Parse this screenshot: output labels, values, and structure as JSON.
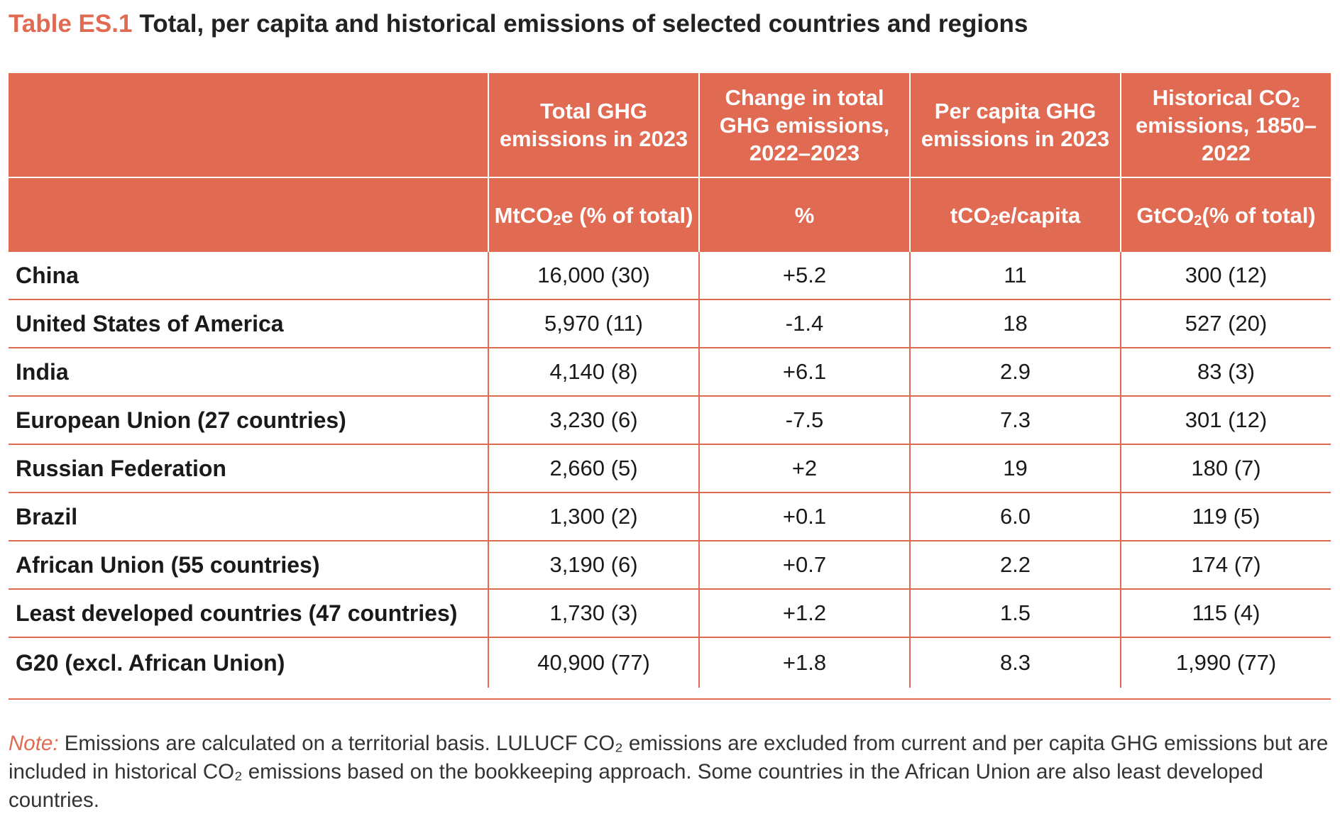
{
  "title": {
    "label": "Table ES.1",
    "text": "Total, per capita and historical emissions of selected countries and regions"
  },
  "table": {
    "headers": [
      {
        "key": "total",
        "pre": "Total GHG emissions in 2023",
        "sub": "",
        "post": ""
      },
      {
        "key": "change",
        "pre": "Change in total GHG emissions, 2022–2023",
        "sub": "",
        "post": ""
      },
      {
        "key": "percap",
        "pre": "Per capita GHG emissions in 2023",
        "sub": "",
        "post": ""
      },
      {
        "key": "hist",
        "pre": "Historical CO",
        "sub": "2",
        "post": " emissions, 1850–2022"
      }
    ],
    "units": [
      {
        "key": "total",
        "pre": "MtCO",
        "sub": "2",
        "post": "e (% of total)"
      },
      {
        "key": "change",
        "pre": "%",
        "sub": "",
        "post": ""
      },
      {
        "key": "percap",
        "pre": "tCO",
        "sub": "2",
        "post": "e/capita"
      },
      {
        "key": "hist",
        "pre": "GtCO",
        "sub": "2",
        "post": " (% of total)"
      }
    ],
    "rows": [
      {
        "name": "China",
        "total": "16,000 (30)",
        "change": "+5.2",
        "percap": "11",
        "hist": "300 (12)"
      },
      {
        "name": "United States of America",
        "total": "5,970 (11)",
        "change": "-1.4",
        "percap": "18",
        "hist": "527 (20)"
      },
      {
        "name": "India",
        "total": "4,140 (8)",
        "change": "+6.1",
        "percap": "2.9",
        "hist": "83 (3)"
      },
      {
        "name": "European Union (27 countries)",
        "total": "3,230 (6)",
        "change": "-7.5",
        "percap": "7.3",
        "hist": "301 (12)"
      },
      {
        "name": "Russian Federation",
        "total": "2,660 (5)",
        "change": "+2",
        "percap": "19",
        "hist": "180 (7)"
      },
      {
        "name": "Brazil",
        "total": "1,300 (2)",
        "change": "+0.1",
        "percap": "6.0",
        "hist": "119 (5)"
      },
      {
        "name": "African Union (55 countries)",
        "total": "3,190 (6)",
        "change": "+0.7",
        "percap": "2.2",
        "hist": "174 (7)"
      },
      {
        "name": "Least developed countries (47 countries)",
        "total": "1,730 (3)",
        "change": "+1.2",
        "percap": "1.5",
        "hist": "115 (4)"
      },
      {
        "name": "G20 (excl. African Union)",
        "total": "40,900 (77)",
        "change": "+1.8",
        "percap": "8.3",
        "hist": "1,990 (77)"
      }
    ]
  },
  "note": {
    "label": "Note:",
    "text": "Emissions are calculated on a territorial basis. LULUCF CO₂ emissions are excluded from current and per capita GHG emissions but are included in historical CO₂ emissions based on the bookkeeping approach. Some countries in the African Union are also least developed countries."
  },
  "colors": {
    "accent": "#e06a52",
    "header_text": "#ffffff",
    "body_text": "#1a1a1a"
  }
}
